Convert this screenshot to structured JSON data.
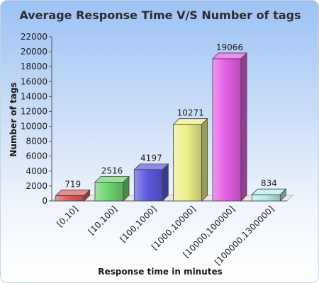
{
  "chart_data": {
    "type": "bar",
    "title": "Average Response Time V/S Number of tags",
    "xlabel": "Response time in minutes",
    "ylabel": "Number of tags",
    "categories": [
      "[0,10]",
      "[10,100]",
      "[100,1000]",
      "[1000,10000]",
      "[10000,100000]",
      "[100000,1300000]"
    ],
    "values": [
      719,
      2516,
      4197,
      10271,
      19066,
      834
    ],
    "ylim": [
      0,
      22000
    ],
    "yticks": [
      0,
      2000,
      4000,
      6000,
      8000,
      10000,
      12000,
      14000,
      16000,
      18000,
      20000,
      22000
    ],
    "grid": false,
    "legend": "none",
    "bar_colors": [
      "#e05a5a",
      "#6fd46f",
      "#5b5be0",
      "#eeee88",
      "#e65ee6",
      "#b8ecec"
    ]
  }
}
